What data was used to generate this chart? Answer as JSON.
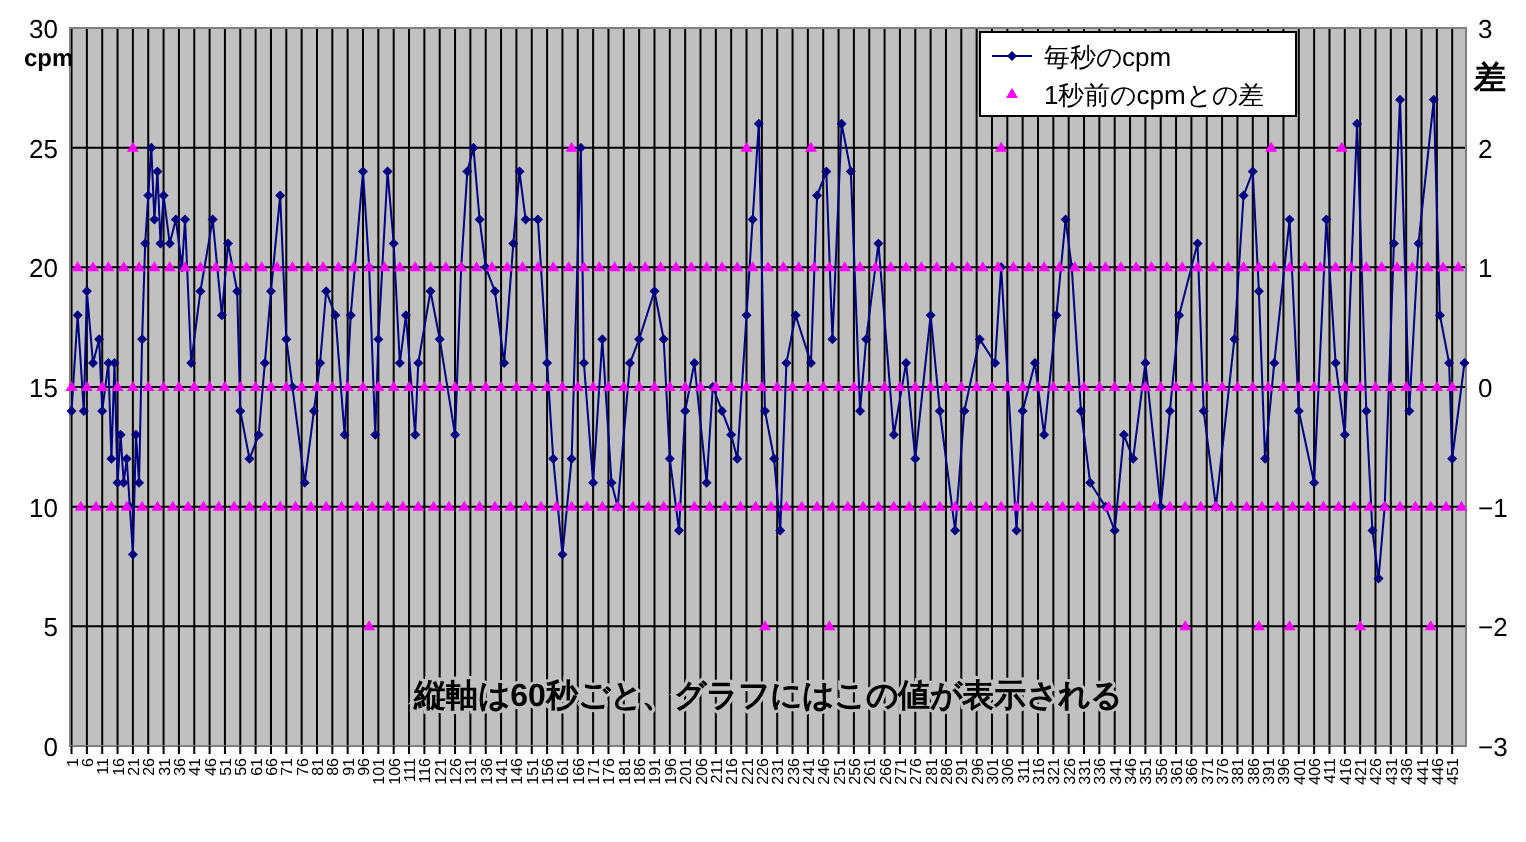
{
  "chart_data": {
    "type": "line",
    "ylabel": "cpm",
    "y2label": "差",
    "annotations": [
      "縦軸は60秒ごと、グラフにはこの値が表示される"
    ],
    "grid": true,
    "legend": "top right",
    "xlim": [
      0.5,
      455.5
    ],
    "xticks": [
      1,
      6,
      11,
      16,
      21,
      26,
      31,
      36,
      41,
      46,
      51,
      56,
      61,
      66,
      71,
      76,
      81,
      86,
      91,
      96,
      101,
      106,
      111,
      116,
      121,
      126,
      131,
      136,
      141,
      146,
      151,
      156,
      161,
      166,
      171,
      176,
      181,
      186,
      191,
      196,
      201,
      206,
      211,
      216,
      221,
      226,
      231,
      236,
      241,
      246,
      251,
      256,
      261,
      266,
      271,
      276,
      281,
      286,
      291,
      296,
      301,
      306,
      311,
      316,
      321,
      326,
      331,
      336,
      341,
      346,
      351,
      356,
      361,
      366,
      371,
      376,
      381,
      386,
      391,
      396,
      401,
      406,
      411,
      416,
      421,
      426,
      431,
      436,
      441,
      446,
      451
    ],
    "ylim": [
      0,
      30
    ],
    "yticks": [
      0,
      5,
      10,
      15,
      20,
      25,
      30
    ],
    "y2lim": [
      -3,
      3
    ],
    "y2ticks": [
      -3,
      -2,
      -1,
      0,
      1,
      2,
      3
    ],
    "series": [
      {
        "name": "毎秒のcpm",
        "color": "#000080",
        "marker": "diamond",
        "x": [
          1,
          3,
          5,
          6,
          8,
          10,
          11,
          13,
          14,
          15,
          16,
          17,
          18,
          19,
          20,
          21,
          22,
          23,
          24,
          25,
          26,
          27,
          28,
          29,
          30,
          31,
          33,
          35,
          37,
          38,
          40,
          43,
          47,
          50,
          52,
          55,
          56,
          59,
          62,
          64,
          66,
          69,
          71,
          73,
          77,
          80,
          82,
          84,
          87,
          90,
          92,
          96,
          98,
          100,
          101,
          104,
          106,
          108,
          110,
          113,
          114,
          118,
          121,
          126,
          128,
          130,
          132,
          134,
          136,
          139,
          142,
          145,
          147,
          149,
          153,
          156,
          158,
          161,
          164,
          167,
          168,
          171,
          174,
          177,
          179,
          183,
          186,
          191,
          194,
          196,
          199,
          201,
          204,
          208,
          210,
          213,
          216,
          218,
          221,
          223,
          225,
          227,
          230,
          232,
          234,
          237,
          242,
          244,
          247,
          249,
          252,
          255,
          258,
          260,
          264,
          269,
          273,
          276,
          281,
          284,
          289,
          292,
          297,
          302,
          304,
          309,
          311,
          315,
          318,
          322,
          325,
          327,
          330,
          333,
          338,
          341,
          344,
          347,
          351,
          356,
          359,
          362,
          368,
          370,
          374,
          380,
          383,
          386,
          388,
          390,
          393,
          398,
          401,
          406,
          410,
          413,
          416,
          420,
          423,
          425,
          427,
          429,
          432,
          434,
          437,
          440,
          445,
          447,
          450,
          451,
          455
        ],
        "values": [
          14,
          18,
          14,
          19,
          16,
          17,
          14,
          16,
          12,
          16,
          11,
          13,
          11,
          12,
          10,
          8,
          13,
          11,
          17,
          21,
          23,
          25,
          22,
          24,
          21,
          23,
          21,
          22,
          20,
          22,
          16,
          19,
          22,
          18,
          21,
          19,
          14,
          12,
          13,
          16,
          19,
          23,
          17,
          15,
          11,
          14,
          16,
          19,
          18,
          13,
          18,
          24,
          20,
          13,
          17,
          24,
          21,
          16,
          18,
          13,
          16,
          19,
          17,
          13,
          20,
          24,
          25,
          22,
          20,
          19,
          16,
          21,
          24,
          22,
          22,
          16,
          12,
          8,
          12,
          25,
          16,
          11,
          17,
          11,
          10,
          16,
          17,
          19,
          17,
          12,
          9,
          14,
          16,
          11,
          15,
          14,
          13,
          12,
          18,
          22,
          26,
          14,
          12,
          9,
          16,
          18,
          16,
          23,
          24,
          17,
          26,
          24,
          14,
          17,
          21,
          13,
          16,
          12,
          18,
          14,
          9,
          14,
          17,
          16,
          20,
          9,
          14,
          16,
          13,
          18,
          22,
          20,
          14,
          11,
          10,
          9,
          13,
          12,
          16,
          10,
          14,
          18,
          21,
          14,
          10,
          17,
          23,
          24,
          19,
          12,
          16,
          22,
          14,
          11,
          22,
          16,
          13,
          26,
          14,
          9,
          7,
          10,
          21,
          27,
          14,
          21,
          27,
          18,
          16,
          12,
          16
        ]
      },
      {
        "name": "1秒前のcpmとの差",
        "type": "scatter",
        "axis": "y2",
        "color": "#ff00ff",
        "marker": "triangle",
        "x": [
          1,
          6,
          11,
          16,
          21,
          26,
          31,
          36,
          41,
          46,
          51,
          56,
          61,
          66,
          71,
          76,
          81,
          86,
          91,
          96,
          101,
          106,
          111,
          116,
          121,
          126,
          131,
          136,
          141,
          146,
          151,
          156,
          161,
          166,
          171,
          176,
          181,
          186,
          191,
          196,
          201,
          206,
          211,
          216,
          221,
          226,
          231,
          236,
          241,
          246,
          251,
          256,
          261,
          266,
          271,
          276,
          281,
          286,
          291,
          296,
          301,
          306,
          311,
          316,
          321,
          326,
          331,
          336,
          341,
          346,
          351,
          356,
          361,
          366,
          371,
          376,
          381,
          386,
          391,
          396,
          401,
          406,
          411,
          416,
          421,
          426,
          431,
          436,
          441,
          446,
          451,
          3,
          8,
          13,
          18,
          23,
          28,
          33,
          38,
          43,
          48,
          53,
          58,
          63,
          68,
          73,
          78,
          83,
          88,
          93,
          98,
          103,
          108,
          113,
          118,
          123,
          128,
          133,
          138,
          143,
          148,
          153,
          158,
          163,
          168,
          173,
          178,
          183,
          188,
          193,
          198,
          203,
          208,
          213,
          218,
          223,
          228,
          233,
          238,
          243,
          248,
          253,
          258,
          263,
          268,
          273,
          278,
          283,
          288,
          293,
          298,
          303,
          308,
          313,
          318,
          323,
          328,
          333,
          338,
          343,
          348,
          353,
          358,
          363,
          368,
          373,
          378,
          383,
          388,
          393,
          398,
          403,
          408,
          413,
          418,
          423,
          428,
          433,
          438,
          443,
          448,
          453,
          4,
          9,
          14,
          19,
          24,
          29,
          34,
          39,
          44,
          49,
          54,
          59,
          64,
          69,
          74,
          79,
          84,
          89,
          94,
          99,
          104,
          109,
          114,
          119,
          124,
          129,
          134,
          139,
          144,
          149,
          154,
          159,
          164,
          169,
          174,
          179,
          184,
          189,
          194,
          199,
          204,
          209,
          214,
          219,
          224,
          229,
          234,
          239,
          244,
          249,
          254,
          259,
          264,
          269,
          274,
          279,
          284,
          289,
          294,
          299,
          304,
          309,
          314,
          319,
          324,
          329,
          334,
          339,
          344,
          349,
          354,
          359,
          364,
          369,
          374,
          379,
          384,
          389,
          394,
          399,
          404,
          409,
          414,
          419,
          424,
          429,
          434,
          439,
          444,
          449,
          454,
          21,
          164,
          221,
          242,
          304,
          392,
          415,
          98,
          227,
          248,
          364,
          388,
          398,
          421,
          444
        ],
        "values": [
          0,
          0,
          0,
          0,
          0,
          0,
          0,
          0,
          0,
          0,
          0,
          0,
          0,
          0,
          0,
          0,
          0,
          0,
          0,
          0,
          0,
          0,
          0,
          0,
          0,
          0,
          0,
          0,
          0,
          0,
          0,
          0,
          0,
          0,
          0,
          0,
          0,
          0,
          0,
          0,
          0,
          0,
          0,
          0,
          0,
          0,
          0,
          0,
          0,
          0,
          0,
          0,
          0,
          0,
          0,
          0,
          0,
          0,
          0,
          0,
          0,
          0,
          0,
          0,
          0,
          0,
          0,
          0,
          0,
          0,
          0,
          0,
          0,
          0,
          0,
          0,
          0,
          0,
          0,
          0,
          0,
          0,
          0,
          0,
          0,
          0,
          0,
          0,
          0,
          0,
          0,
          1,
          1,
          1,
          1,
          1,
          1,
          1,
          1,
          1,
          1,
          1,
          1,
          1,
          1,
          1,
          1,
          1,
          1,
          1,
          1,
          1,
          1,
          1,
          1,
          1,
          1,
          1,
          1,
          1,
          1,
          1,
          1,
          1,
          1,
          1,
          1,
          1,
          1,
          1,
          1,
          1,
          1,
          1,
          1,
          1,
          1,
          1,
          1,
          1,
          1,
          1,
          1,
          1,
          1,
          1,
          1,
          1,
          1,
          1,
          1,
          1,
          1,
          1,
          1,
          1,
          1,
          1,
          1,
          1,
          1,
          1,
          1,
          1,
          1,
          1,
          1,
          1,
          1,
          1,
          1,
          1,
          1,
          1,
          1,
          1,
          1,
          1,
          1,
          1,
          1,
          1,
          -1,
          -1,
          -1,
          -1,
          -1,
          -1,
          -1,
          -1,
          -1,
          -1,
          -1,
          -1,
          -1,
          -1,
          -1,
          -1,
          -1,
          -1,
          -1,
          -1,
          -1,
          -1,
          -1,
          -1,
          -1,
          -1,
          -1,
          -1,
          -1,
          -1,
          -1,
          -1,
          -1,
          -1,
          -1,
          -1,
          -1,
          -1,
          -1,
          -1,
          -1,
          -1,
          -1,
          -1,
          -1,
          -1,
          -1,
          -1,
          -1,
          -1,
          -1,
          -1,
          -1,
          -1,
          -1,
          -1,
          -1,
          -1,
          -1,
          -1,
          -1,
          -1,
          -1,
          -1,
          -1,
          -1,
          -1,
          -1,
          -1,
          -1,
          -1,
          -1,
          -1,
          -1,
          -1,
          -1,
          -1,
          -1,
          -1,
          -1,
          -1,
          -1,
          -1,
          -1,
          -1,
          -1,
          -1,
          -1,
          -1,
          -1,
          -1,
          2,
          2,
          2,
          2,
          2,
          2,
          2,
          -2,
          -2,
          -2,
          -2,
          -2,
          -2,
          -2,
          -2
        ]
      }
    ]
  }
}
